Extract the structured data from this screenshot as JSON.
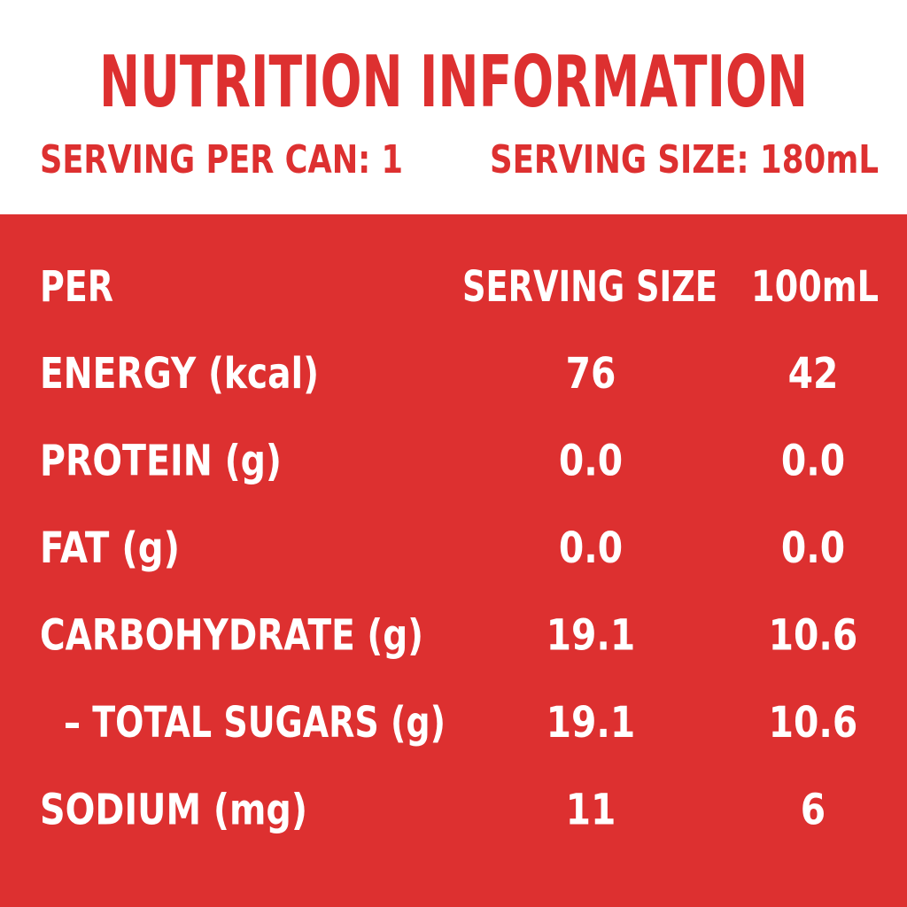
{
  "header": {
    "title": "NUTRITION INFORMATION",
    "servings_per_can": "SERVING PER CAN: 1",
    "serving_size": "SERVING SIZE: 180mL"
  },
  "table": {
    "header": [
      "PER",
      "SERVING SIZE",
      "100mL"
    ],
    "rows": [
      [
        "ENERGY (kcal)",
        "76",
        "42"
      ],
      [
        "PROTEIN (g)",
        "0.0",
        "0.0"
      ],
      [
        "FAT (g)",
        "0.0",
        "0.0"
      ],
      [
        "CARBOHYDRATE (g)",
        "19.1",
        "10.6"
      ],
      [
        "– TOTAL SUGARS (g)",
        "19.1",
        "10.6"
      ],
      [
        "SODIUM (mg)",
        "11",
        "6"
      ]
    ]
  }
}
